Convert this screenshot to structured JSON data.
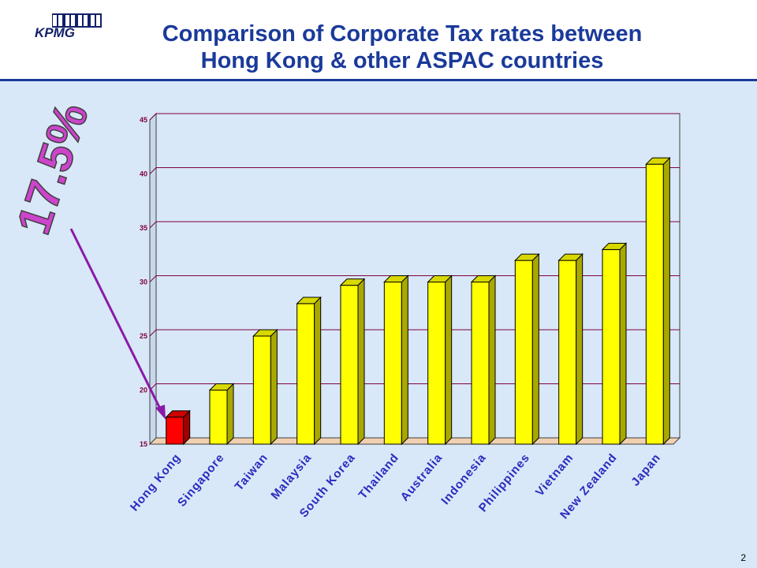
{
  "header": {
    "logo_text": "KPMG",
    "title_line1": "Comparison of Corporate Tax rates between",
    "title_line2": "Hong Kong & other ASPAC countries"
  },
  "callout": {
    "text": "17.5%",
    "color": "#cc44cc"
  },
  "page_number": "2",
  "colors": {
    "title": "#1a3a9a",
    "highlight_bar": "#ff0000",
    "bar": "#ffff00",
    "gridline": "#800040",
    "arrow": "#8a1aa8",
    "axis_label": "#2a2ac0"
  },
  "chart_data": {
    "type": "bar",
    "categories": [
      "Hong Kong",
      "Singapore",
      "Taiwan",
      "Malaysia",
      "South Korea",
      "Thailand",
      "Australia",
      "Indonesia",
      "Philippines",
      "Vietnam",
      "New Zealand",
      "Japan"
    ],
    "values": [
      17.5,
      20,
      25,
      28,
      29.7,
      30,
      30,
      30,
      32,
      32,
      33,
      40.9
    ],
    "highlight_index": 0,
    "ylim": [
      15,
      45
    ],
    "yticks": [
      15,
      20,
      25,
      30,
      35,
      40,
      45
    ],
    "ytick_labels": [
      "15",
      "20",
      "25",
      "30",
      "35",
      "40",
      "45"
    ],
    "grid": true,
    "title": "",
    "xlabel": "",
    "ylabel": ""
  }
}
